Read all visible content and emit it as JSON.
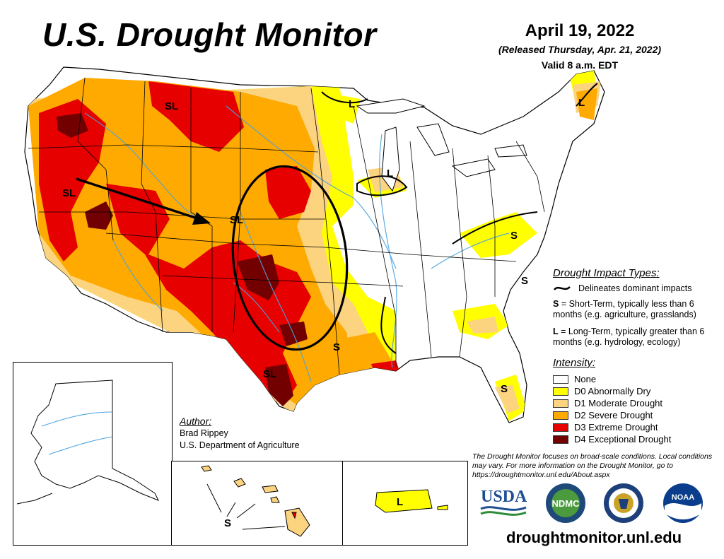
{
  "title": "U.S. Drought Monitor",
  "date": "April 19, 2022",
  "released": "(Released Thursday, Apr. 21, 2022)",
  "valid": "Valid 8 a.m. EDT",
  "impact_types": {
    "heading": "Drought Impact Types:",
    "delineates": "Delineates dominant impacts",
    "short_term_key": "S",
    "short_term_text": " = Short-Term, typically less than 6 months (e.g. agriculture, grasslands)",
    "long_term_key": "L",
    "long_term_text": " = Long-Term, typically greater than 6 months (e.g. hydrology, ecology)"
  },
  "intensity": {
    "heading": "Intensity:",
    "levels": [
      {
        "label": "None",
        "color": "#ffffff"
      },
      {
        "label": "D0 Abnormally Dry",
        "color": "#ffff00"
      },
      {
        "label": "D1 Moderate Drought",
        "color": "#fcd37f"
      },
      {
        "label": "D2 Severe Drought",
        "color": "#ffaa00"
      },
      {
        "label": "D3 Extreme Drought",
        "color": "#e60000"
      },
      {
        "label": "D4 Exceptional Drought",
        "color": "#730000"
      }
    ]
  },
  "author": {
    "heading": "Author:",
    "name": "Brad Rippey",
    "org": "U.S. Department of Agriculture"
  },
  "note": "The Drought Monitor focuses on broad-scale conditions. Local conditions may vary. For more information on the Drought Monitor, go to https://droughtmonitor.unl.edu/About.aspx",
  "website": "droughtmonitor.unl.edu",
  "map_labels": {
    "sl": "SL",
    "s": "S",
    "l": "L"
  },
  "logos": {
    "usda": "USDA",
    "ndmc": "NDMC",
    "noaa": "NOAA"
  },
  "colors": {
    "water": "#4aa3df",
    "border": "#000000"
  }
}
